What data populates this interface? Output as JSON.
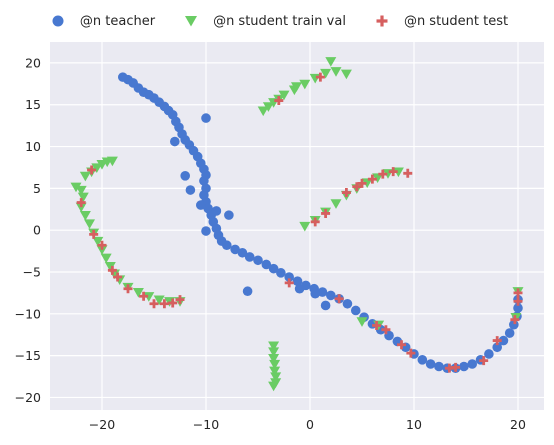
{
  "chart_data": {
    "type": "scatter",
    "title": "",
    "xlabel": "",
    "ylabel": "",
    "xlim": [
      -25,
      22.5
    ],
    "ylim": [
      -21.5,
      22.5
    ],
    "xticks": [
      -20,
      -10,
      0,
      10,
      20
    ],
    "yticks": [
      -20,
      -15,
      -10,
      -5,
      0,
      5,
      10,
      15,
      20
    ],
    "grid": true,
    "legend_position": "top",
    "colors": {
      "background": "#EAEAF2",
      "grid": "#FFFFFF",
      "teacher": "#4878D0",
      "train_val": "#6ACC64",
      "test": "#D65F5F"
    },
    "series": [
      {
        "name": "@n teacher",
        "marker": "circle",
        "points": [
          [
            -18.0,
            18.3
          ],
          [
            -17.5,
            18.0
          ],
          [
            -17.0,
            17.6
          ],
          [
            -16.5,
            17.0
          ],
          [
            -16.0,
            16.5
          ],
          [
            -15.5,
            16.2
          ],
          [
            -15.0,
            15.8
          ],
          [
            -14.5,
            15.3
          ],
          [
            -14.0,
            14.8
          ],
          [
            -13.6,
            14.3
          ],
          [
            -13.2,
            13.8
          ],
          [
            -12.9,
            13.0
          ],
          [
            -12.6,
            12.3
          ],
          [
            -12.3,
            11.5
          ],
          [
            -12.0,
            10.8
          ],
          [
            -11.6,
            10.2
          ],
          [
            -11.2,
            9.5
          ],
          [
            -10.8,
            8.8
          ],
          [
            -10.5,
            8.0
          ],
          [
            -10.2,
            7.3
          ],
          [
            -10.0,
            6.6
          ],
          [
            -10.2,
            5.9
          ],
          [
            -10.0,
            5.0
          ],
          [
            -10.2,
            4.2
          ],
          [
            -10.0,
            3.4
          ],
          [
            -9.8,
            2.6
          ],
          [
            -9.5,
            1.8
          ],
          [
            -9.3,
            1.0
          ],
          [
            -9.0,
            0.2
          ],
          [
            -8.8,
            -0.6
          ],
          [
            -8.5,
            -1.3
          ],
          [
            -8.0,
            -1.8
          ],
          [
            -7.2,
            -2.3
          ],
          [
            -6.5,
            -2.7
          ],
          [
            -5.8,
            -3.2
          ],
          [
            -5.0,
            -3.6
          ],
          [
            -4.2,
            -4.1
          ],
          [
            -3.5,
            -4.6
          ],
          [
            -2.8,
            -5.1
          ],
          [
            -2.0,
            -5.6
          ],
          [
            -1.2,
            -6.1
          ],
          [
            -0.4,
            -6.6
          ],
          [
            0.4,
            -7.0
          ],
          [
            1.2,
            -7.4
          ],
          [
            2.0,
            -7.8
          ],
          [
            2.8,
            -8.2
          ],
          [
            3.6,
            -8.8
          ],
          [
            4.4,
            -9.6
          ],
          [
            5.2,
            -10.4
          ],
          [
            6.0,
            -11.2
          ],
          [
            6.8,
            -11.9
          ],
          [
            7.6,
            -12.6
          ],
          [
            8.4,
            -13.3
          ],
          [
            9.2,
            -14.0
          ],
          [
            10.0,
            -14.8
          ],
          [
            10.8,
            -15.5
          ],
          [
            11.6,
            -16.0
          ],
          [
            12.4,
            -16.3
          ],
          [
            13.2,
            -16.5
          ],
          [
            14.0,
            -16.5
          ],
          [
            14.8,
            -16.3
          ],
          [
            15.6,
            -16.0
          ],
          [
            16.4,
            -15.5
          ],
          [
            17.2,
            -14.8
          ],
          [
            18.0,
            -14.0
          ],
          [
            18.6,
            -13.2
          ],
          [
            19.2,
            -12.3
          ],
          [
            19.6,
            -11.3
          ],
          [
            19.9,
            -10.3
          ],
          [
            20.0,
            -9.3
          ],
          [
            20.0,
            -8.3
          ],
          [
            -13.0,
            10.6
          ],
          [
            -10.0,
            13.4
          ],
          [
            -9.0,
            2.3
          ],
          [
            -12.0,
            6.5
          ],
          [
            -11.5,
            4.8
          ],
          [
            -10.5,
            3.0
          ],
          [
            -7.8,
            1.8
          ],
          [
            -10.0,
            -0.1
          ],
          [
            -6.0,
            -7.3
          ],
          [
            1.5,
            -9.0
          ],
          [
            -1.0,
            -7.0
          ],
          [
            0.5,
            -7.6
          ]
        ]
      },
      {
        "name": "@n student train val",
        "marker": "triangle-down",
        "points": [
          [
            -22.5,
            5.2
          ],
          [
            -22.0,
            4.8
          ],
          [
            -21.6,
            6.5
          ],
          [
            -21.0,
            7.0
          ],
          [
            -20.5,
            7.5
          ],
          [
            -20.0,
            7.9
          ],
          [
            -19.5,
            8.2
          ],
          [
            -19.0,
            8.3
          ],
          [
            -22.0,
            2.8
          ],
          [
            -21.6,
            1.8
          ],
          [
            -21.2,
            0.8
          ],
          [
            -20.8,
            -0.3
          ],
          [
            -20.4,
            -1.3
          ],
          [
            -20.0,
            -2.3
          ],
          [
            -19.6,
            -3.3
          ],
          [
            -19.2,
            -4.3
          ],
          [
            -18.8,
            -5.2
          ],
          [
            -18.3,
            -5.9
          ],
          [
            -17.5,
            -6.8
          ],
          [
            -16.5,
            -7.4
          ],
          [
            -15.5,
            -7.9
          ],
          [
            -14.5,
            -8.3
          ],
          [
            -13.5,
            -8.5
          ],
          [
            -12.5,
            -8.5
          ],
          [
            -4.5,
            14.3
          ],
          [
            -4.0,
            14.8
          ],
          [
            -3.5,
            15.3
          ],
          [
            -3.0,
            15.7
          ],
          [
            -2.5,
            16.2
          ],
          [
            -1.5,
            16.8
          ],
          [
            -0.5,
            17.5
          ],
          [
            0.5,
            18.2
          ],
          [
            1.5,
            18.8
          ],
          [
            2.0,
            20.2
          ],
          [
            2.5,
            19.0
          ],
          [
            3.5,
            18.7
          ],
          [
            -3.5,
            -13.8
          ],
          [
            -3.5,
            -14.5
          ],
          [
            -3.5,
            -15.3
          ],
          [
            -3.4,
            -16.0
          ],
          [
            -3.4,
            -16.8
          ],
          [
            -3.3,
            -17.5
          ],
          [
            -3.3,
            -18.2
          ],
          [
            -3.5,
            -18.6
          ],
          [
            -0.5,
            0.5
          ],
          [
            0.5,
            1.2
          ],
          [
            1.5,
            2.2
          ],
          [
            2.5,
            3.2
          ],
          [
            3.5,
            4.2
          ],
          [
            4.5,
            5.0
          ],
          [
            5.5,
            5.7
          ],
          [
            6.5,
            6.3
          ],
          [
            7.5,
            6.8
          ],
          [
            8.5,
            7.0
          ],
          [
            5.0,
            -10.9
          ],
          [
            6.6,
            -11.3
          ],
          [
            19.8,
            -10.4
          ],
          [
            20.0,
            -7.3
          ],
          [
            -21.8,
            4.0
          ],
          [
            -1.3,
            17.2
          ]
        ]
      },
      {
        "name": "@n student test",
        "marker": "plus",
        "points": [
          [
            -21.0,
            7.2
          ],
          [
            -22.0,
            3.3
          ],
          [
            -20.8,
            -0.5
          ],
          [
            -20.0,
            -1.8
          ],
          [
            -19.0,
            -4.8
          ],
          [
            -18.5,
            -5.6
          ],
          [
            -17.5,
            -7.0
          ],
          [
            -16.0,
            -7.9
          ],
          [
            -15.0,
            -8.8
          ],
          [
            -14.0,
            -8.8
          ],
          [
            -13.2,
            -8.7
          ],
          [
            -12.5,
            -8.3
          ],
          [
            -3.0,
            15.5
          ],
          [
            1.0,
            18.3
          ],
          [
            0.5,
            1.0
          ],
          [
            1.5,
            2.0
          ],
          [
            3.5,
            4.5
          ],
          [
            4.5,
            5.2
          ],
          [
            5.0,
            5.6
          ],
          [
            6.0,
            6.1
          ],
          [
            7.0,
            6.7
          ],
          [
            8.0,
            7.0
          ],
          [
            9.4,
            6.8
          ],
          [
            -2.0,
            -6.3
          ],
          [
            2.8,
            -8.2
          ],
          [
            6.4,
            -11.4
          ],
          [
            7.3,
            -11.9
          ],
          [
            8.8,
            -13.7
          ],
          [
            9.7,
            -14.7
          ],
          [
            13.4,
            -16.5
          ],
          [
            14.0,
            -16.4
          ],
          [
            16.7,
            -15.6
          ],
          [
            18.0,
            -13.2
          ],
          [
            19.7,
            -10.7
          ],
          [
            20.0,
            -7.5
          ],
          [
            20.0,
            -8.5
          ]
        ]
      }
    ]
  }
}
